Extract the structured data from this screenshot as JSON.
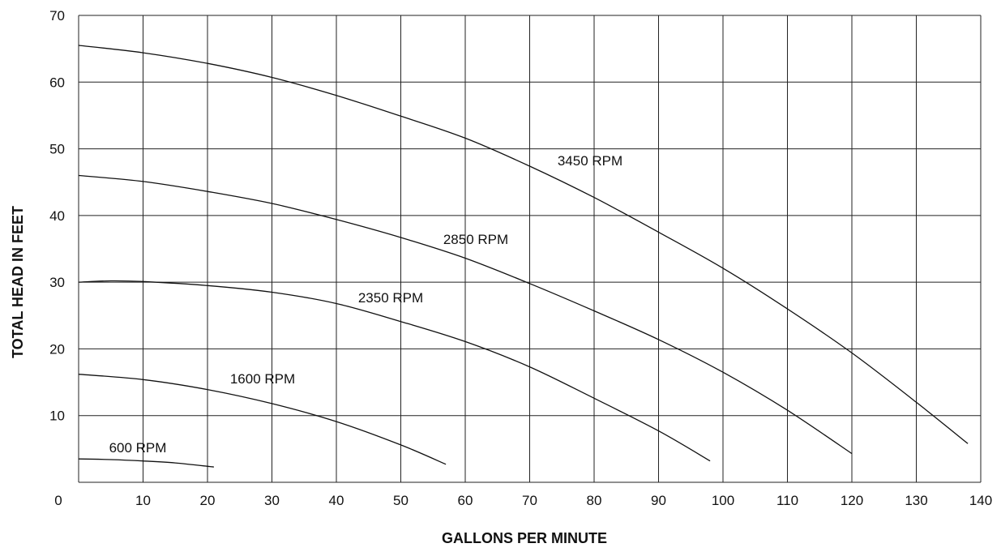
{
  "chart_data": {
    "type": "line",
    "xlabel": "GALLONS PER MINUTE",
    "ylabel": "TOTAL HEAD IN FEET",
    "xlim": [
      0,
      140
    ],
    "ylim": [
      0,
      70
    ],
    "x_ticks": [
      "0",
      "10",
      "20",
      "30",
      "40",
      "50",
      "60",
      "70",
      "80",
      "90",
      "100",
      "110",
      "120",
      "130",
      "140"
    ],
    "y_ticks": [
      "10",
      "20",
      "30",
      "40",
      "50",
      "60",
      "70"
    ],
    "grid": true,
    "series": [
      {
        "name": "3450 RPM",
        "x": [
          0,
          10,
          20,
          30,
          40,
          50,
          60,
          70,
          80,
          90,
          100,
          110,
          120,
          130,
          138
        ],
        "y": [
          65.5,
          64.4,
          62.8,
          60.7,
          58.0,
          54.9,
          51.6,
          47.4,
          42.7,
          37.5,
          32.1,
          26.0,
          19.4,
          12.0,
          5.8
        ]
      },
      {
        "name": "2850 RPM",
        "x": [
          0,
          10,
          20,
          30,
          40,
          50,
          60,
          70,
          80,
          90,
          100,
          110,
          120
        ],
        "y": [
          46.0,
          45.1,
          43.6,
          41.8,
          39.4,
          36.7,
          33.6,
          29.8,
          25.7,
          21.4,
          16.5,
          10.8,
          4.3
        ]
      },
      {
        "name": "2350 RPM",
        "x": [
          0,
          5,
          10,
          20,
          30,
          40,
          50,
          60,
          70,
          80,
          90,
          98
        ],
        "y": [
          30.0,
          30.2,
          30.1,
          29.5,
          28.5,
          26.8,
          24.1,
          21.1,
          17.3,
          12.6,
          7.7,
          3.2
        ]
      },
      {
        "name": "1600 RPM",
        "x": [
          0,
          10,
          20,
          30,
          40,
          50,
          57
        ],
        "y": [
          16.2,
          15.4,
          13.9,
          11.8,
          9.1,
          5.6,
          2.7
        ]
      },
      {
        "name": "600 RPM",
        "x": [
          0,
          5,
          10,
          15,
          21
        ],
        "y": [
          3.5,
          3.4,
          3.2,
          2.9,
          2.3
        ]
      }
    ]
  }
}
